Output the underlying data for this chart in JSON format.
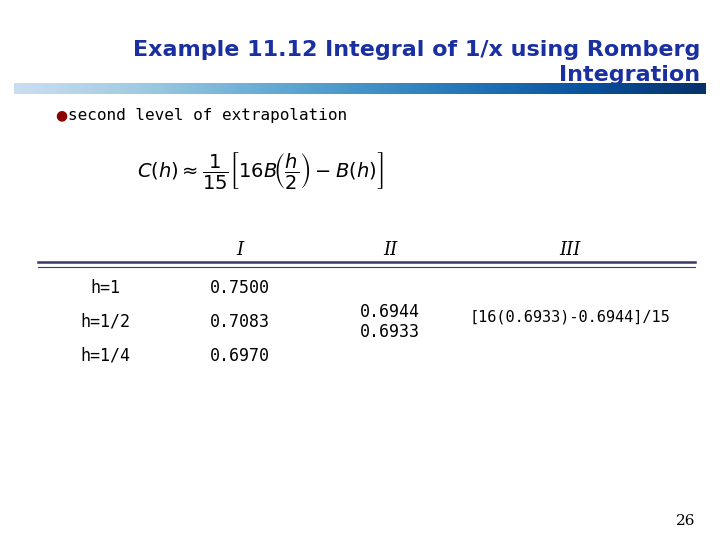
{
  "title_line1": "Example 11.12 Integral of 1/x using Romberg",
  "title_line2": "Integration",
  "title_color": "#1A2FA0",
  "title_fontsize": 16,
  "bg_color": "#FFFFFF",
  "bullet_color": "#8B0000",
  "bullet_text": "second level of extrapolation",
  "bullet_fontsize": 11.5,
  "col_headers": [
    "",
    "I",
    "II",
    "III"
  ],
  "col_header_fontsize": 13,
  "rows": [
    {
      "label": "h=1",
      "col1": "0.7500",
      "col2": "",
      "col3": ""
    },
    {
      "label": "h=1/2",
      "col1": "0.7083",
      "col2": "0.6944",
      "col3": "[16(0.6933)-0.6944]/15"
    },
    {
      "label": "h=1/4",
      "col1": "0.6970",
      "col2": "0.6933",
      "col3": ""
    }
  ],
  "row_fontsize": 12,
  "separator_color": "#3A3A6A",
  "page_number": "26",
  "page_fontsize": 11,
  "formula_fontsize": 14
}
